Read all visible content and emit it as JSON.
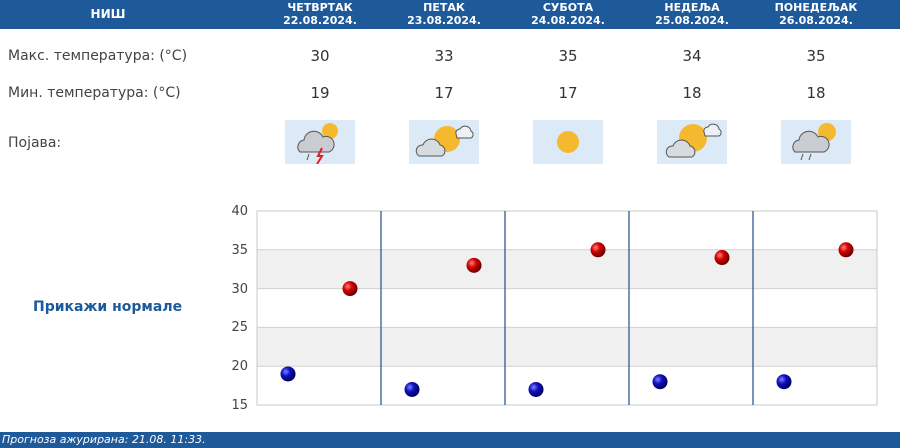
{
  "city": "НИШ",
  "days": [
    {
      "name": "ЧЕТВРТАК",
      "date": "22.08.2024.",
      "max": "30",
      "min": "19",
      "icon": "storm-sun-cloud-icon"
    },
    {
      "name": "ПЕТАК",
      "date": "23.08.2024.",
      "max": "33",
      "min": "17",
      "icon": "sun-cloud-icon"
    },
    {
      "name": "СУБОТА",
      "date": "24.08.2024.",
      "max": "35",
      "min": "17",
      "icon": "sun-icon"
    },
    {
      "name": "НЕДЕЉА",
      "date": "25.08.2024.",
      "max": "34",
      "min": "18",
      "icon": "sun-cloud-icon"
    },
    {
      "name": "ПОНЕДЕЉАК",
      "date": "26.08.2024.",
      "max": "35",
      "min": "18",
      "icon": "shower-sun-cloud-icon"
    }
  ],
  "labels": {
    "max": "Макс. температура: (°C)",
    "min": "Мин. температура: (°C)",
    "phenomenon": "Појава:"
  },
  "show_normals": "Прикажи нормале",
  "footer": "Прогноза ажурирана:  21.08.  11:33.",
  "colors": {
    "header": "#1e5a9a",
    "max_dot": "#cc0000",
    "min_dot": "#0000aa"
  },
  "chart_data": {
    "type": "scatter",
    "ylim": [
      15,
      40
    ],
    "yticks": [
      "40",
      "35",
      "30",
      "25",
      "20",
      "15"
    ],
    "grid": true,
    "series": [
      {
        "values": [
          30,
          33,
          35,
          34,
          35
        ]
      },
      {
        "values": [
          19,
          17,
          17,
          18,
          18
        ]
      }
    ]
  }
}
